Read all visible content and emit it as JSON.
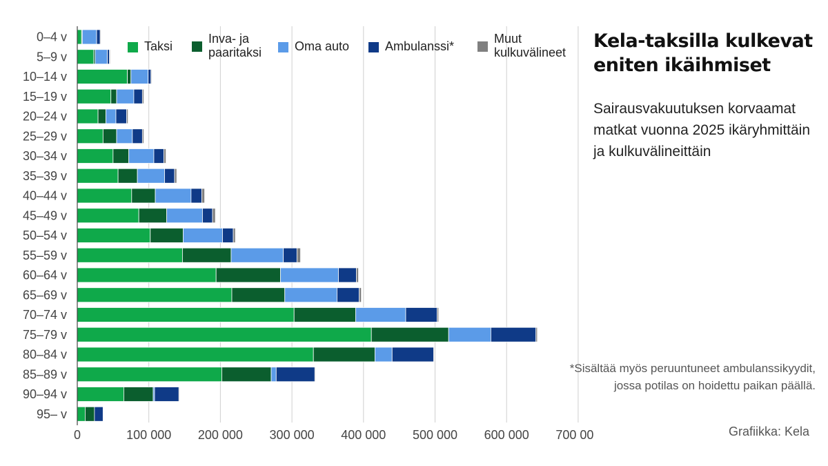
{
  "title": "Kela-taksilla kulkevat eniten ikäihmiset",
  "subtitle": "Sairausvakuutuksen korvaamat matkat vuonna 2025 ikäryhmittäin ja kulkuvälineittäin",
  "footnote": "*Sisältää myös peruuntuneet ambulanssikyydit, jossa potilas on hoidettu paikan päällä.",
  "credit": "Grafiikka: Kela",
  "colors": {
    "Taksi": "#0fa94a",
    "Inva- ja paaritaksi": "#0b5e2e",
    "Oma auto": "#5b9be8",
    "Ambulanssi*": "#0f3a87",
    "Muut kulkuvälineet": "#808080"
  },
  "chart_data": {
    "type": "bar",
    "orientation": "horizontal",
    "stacked": true,
    "categories": [
      "0–4 v",
      "5–9 v",
      "10–14 v",
      "15–19 v",
      "20–24 v",
      "25–29 v",
      "30–34 v",
      "35–39 v",
      "40–44 v",
      "45–49 v",
      "50–54 v",
      "55–59 v",
      "60–64 v",
      "65–69 v",
      "70–74 v",
      "75–79 v",
      "80–84 v",
      "85–89 v",
      "90–94 v",
      "95– v"
    ],
    "series": [
      {
        "name": "Taksi",
        "values": [
          6000,
          23000,
          70000,
          47000,
          29000,
          36000,
          50000,
          57000,
          76000,
          86000,
          102000,
          147000,
          194000,
          216000,
          303000,
          411000,
          330000,
          202000,
          65000,
          11000
        ]
      },
      {
        "name": "Inva- ja paaritaksi",
        "values": [
          1000,
          2000,
          5000,
          8000,
          11000,
          19000,
          22000,
          27000,
          33000,
          39000,
          46000,
          68000,
          90000,
          74000,
          86000,
          108000,
          86000,
          69000,
          41000,
          13000
        ]
      },
      {
        "name": "Oma auto",
        "values": [
          20000,
          17000,
          24000,
          24000,
          14000,
          22000,
          35000,
          38000,
          50000,
          50000,
          55000,
          73000,
          81000,
          73000,
          70000,
          59000,
          24000,
          7000,
          2000,
          0
        ]
      },
      {
        "name": "Ambulanssi*",
        "values": [
          5000,
          3000,
          4000,
          12000,
          15000,
          14000,
          14000,
          14000,
          15000,
          14000,
          15000,
          19000,
          25000,
          31000,
          44000,
          63000,
          58000,
          54000,
          34000,
          12000
        ]
      },
      {
        "name": "Muut kulkuvälineet",
        "values": [
          1000,
          1000,
          1000,
          2000,
          2000,
          2000,
          3000,
          3000,
          4000,
          4000,
          3000,
          5000,
          3000,
          3000,
          2000,
          2000,
          1000,
          1000,
          1000,
          0
        ]
      }
    ],
    "x_ticks": [
      "0",
      "100 000",
      "200 000",
      "300 000",
      "400 000",
      "500 000",
      "600 000",
      "700 000"
    ],
    "xlim": [
      0,
      700000
    ],
    "grid": true,
    "legend_position": "top"
  }
}
